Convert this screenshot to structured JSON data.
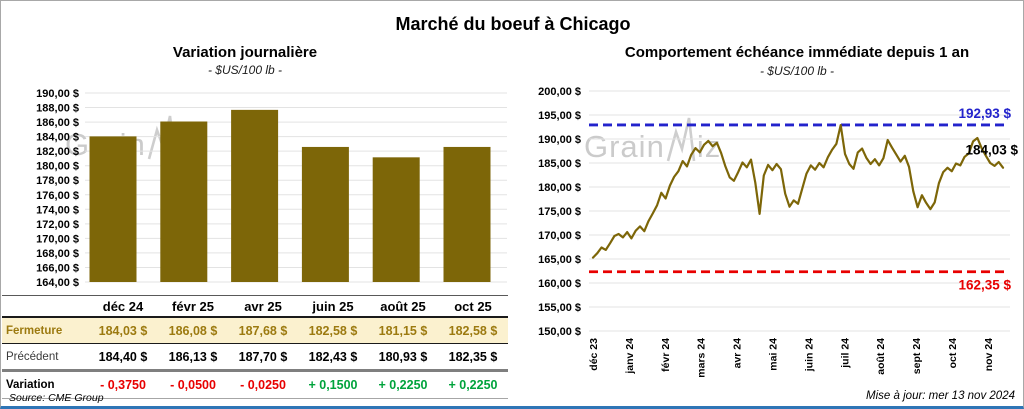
{
  "window": {
    "title": "Marché du boeuf à Chicago",
    "watermark": {
      "left": "Grain",
      "right": "iz"
    },
    "footer": {
      "source": "Source: CME Group",
      "updated": "Mise à jour: mer 13 nov 2024"
    }
  },
  "colors": {
    "gold": "#7D6608",
    "gold_text": "#9C7A10",
    "cream_row": "#FBF1CF",
    "blue": "#2323CC",
    "red": "#E80000",
    "green": "#00A33C",
    "grid": "#E3E3E3",
    "frame_bottom": "#2E75B6"
  },
  "chart_data": [
    {
      "type": "bar",
      "title": "Variation journalière",
      "subtitle": "- $US/100 lb -",
      "categories": [
        "déc 24",
        "févr 25",
        "avr 25",
        "juin 25",
        "août 25",
        "oct 25"
      ],
      "values": [
        184.03,
        186.08,
        187.68,
        182.58,
        181.15,
        182.58
      ],
      "ylim": [
        164,
        190
      ],
      "ytick_step": 2,
      "ytick_suffix": " $",
      "grid": true,
      "table": {
        "rows": [
          {
            "label": "Fermeture",
            "values": [
              "184,03 $",
              "186,08 $",
              "187,68 $",
              "182,58 $",
              "181,15 $",
              "182,58 $"
            ]
          },
          {
            "label": "Précédent",
            "values": [
              "184,40 $",
              "186,13 $",
              "187,70 $",
              "182,43 $",
              "180,93 $",
              "182,35 $"
            ]
          },
          {
            "label": "Variation",
            "values": [
              "- 0,3750",
              "- 0,0500",
              "- 0,0250",
              "+ 0,1500",
              "+ 0,2250",
              "+ 0,2250"
            ]
          }
        ]
      }
    },
    {
      "type": "line",
      "title": "Comportement échéance immédiate depuis 1 an",
      "subtitle": "- $US/100 lb -",
      "x_labels": [
        "déc 23",
        "janv 24",
        "févr 24",
        "mars 24",
        "avr 24",
        "mai 24",
        "juin 24",
        "juil 24",
        "août 24",
        "sept 24",
        "oct 24",
        "nov 24"
      ],
      "values": [
        165.3,
        166.2,
        167.4,
        166.9,
        168.3,
        169.8,
        170.2,
        169.5,
        170.6,
        169.3,
        170.9,
        171.8,
        170.8,
        172.9,
        174.5,
        176.2,
        178.8,
        177.6,
        180.3,
        182.1,
        183.3,
        185.4,
        184.3,
        186.7,
        188.1,
        187.2,
        188.8,
        189.6,
        188.5,
        189.2,
        187.1,
        184.3,
        182.0,
        181.3,
        183.1,
        185.1,
        184.1,
        185.7,
        180.9,
        174.4,
        182.4,
        184.6,
        183.5,
        184.8,
        183.7,
        178.6,
        175.9,
        177.2,
        176.5,
        179.7,
        182.8,
        184.5,
        183.6,
        185.0,
        184.1,
        186.2,
        187.8,
        189.0,
        192.9,
        186.9,
        184.8,
        183.8,
        187.2,
        188.0,
        186.1,
        184.8,
        185.8,
        184.5,
        186.0,
        189.8,
        188.2,
        186.8,
        185.3,
        186.5,
        184.2,
        179.1,
        175.8,
        178.3,
        176.7,
        175.4,
        176.8,
        180.8,
        183.1,
        184.0,
        183.3,
        184.9,
        184.5,
        186.3,
        187.0,
        189.5,
        190.2,
        188.1,
        186.5,
        185.0,
        184.4,
        185.2,
        184.03
      ],
      "ylim": [
        150,
        200
      ],
      "ytick_step": 5,
      "ytick_suffix": " $",
      "grid": true,
      "high_line": {
        "value": 192.93,
        "label": "192,93 $"
      },
      "low_line": {
        "value": 162.35,
        "label": "162,35 $"
      },
      "last_point_label": "184,03 $"
    }
  ]
}
